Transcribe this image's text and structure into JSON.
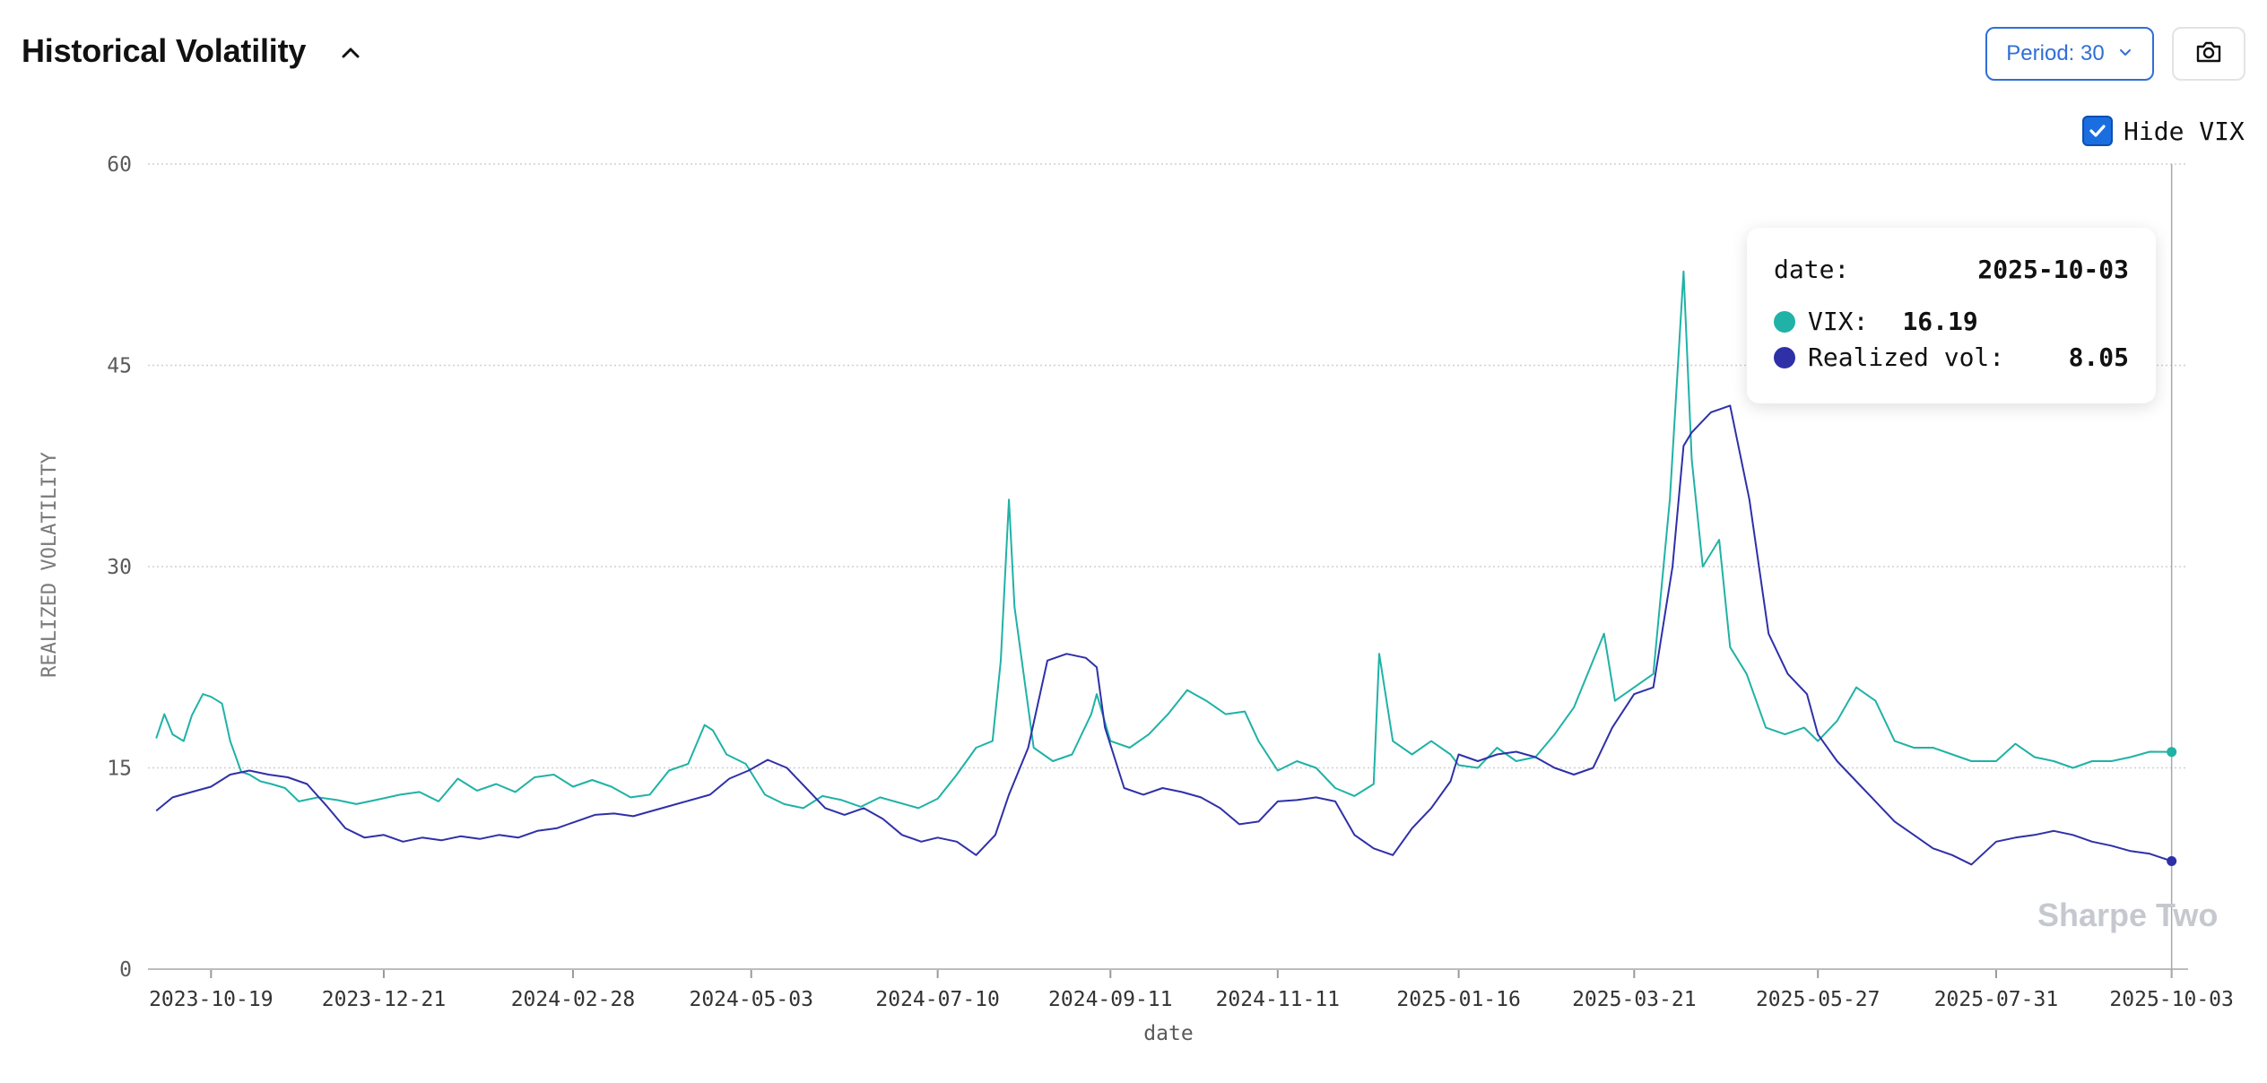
{
  "header": {
    "title": "Historical Volatility",
    "period_label": "Period: 30",
    "hide_vix_label": "Hide VIX",
    "hide_vix_checked": true
  },
  "icons": {
    "collapse": "chevron-up-icon",
    "period_dropdown": "chevron-down-icon",
    "camera": "camera-icon"
  },
  "tooltip": {
    "date_label": "date:",
    "date_value": "2025-10-03",
    "vix_label": "VIX:",
    "vix_value": "16.19",
    "rv_label": "Realized vol:",
    "rv_value": "8.05"
  },
  "watermark": "Sharpe Two",
  "chart_data": {
    "type": "line",
    "xlabel": "date",
    "ylabel": "REALIZED VOLATILITY",
    "ylim": [
      0,
      60
    ],
    "yticks": [
      0,
      15,
      30,
      45,
      60
    ],
    "xlim": [
      "2023-09-26",
      "2025-10-09"
    ],
    "xticks": [
      "2023-10-19",
      "2023-12-21",
      "2024-02-28",
      "2024-05-03",
      "2024-07-10",
      "2024-09-11",
      "2024-11-11",
      "2025-01-16",
      "2025-03-21",
      "2025-05-27",
      "2025-07-31",
      "2025-10-03"
    ],
    "grid": true,
    "crosshair_x": "2025-10-03",
    "colors": {
      "vix": "#20b2a6",
      "realized": "#2f30a8",
      "grid": "#cfcfcf",
      "axis_text": "#5a5a5a"
    },
    "series": [
      {
        "name": "VIX",
        "color": "#20b2a6",
        "x": [
          "2023-09-29",
          "2023-10-02",
          "2023-10-05",
          "2023-10-09",
          "2023-10-12",
          "2023-10-16",
          "2023-10-19",
          "2023-10-23",
          "2023-10-26",
          "2023-10-30",
          "2023-11-02",
          "2023-11-06",
          "2023-11-10",
          "2023-11-15",
          "2023-11-20",
          "2023-11-27",
          "2023-12-04",
          "2023-12-11",
          "2023-12-18",
          "2023-12-27",
          "2024-01-03",
          "2024-01-10",
          "2024-01-17",
          "2024-01-24",
          "2024-01-31",
          "2024-02-07",
          "2024-02-14",
          "2024-02-21",
          "2024-02-28",
          "2024-03-06",
          "2024-03-13",
          "2024-03-20",
          "2024-03-27",
          "2024-04-03",
          "2024-04-10",
          "2024-04-16",
          "2024-04-19",
          "2024-04-24",
          "2024-05-01",
          "2024-05-08",
          "2024-05-15",
          "2024-05-22",
          "2024-05-29",
          "2024-06-05",
          "2024-06-12",
          "2024-06-19",
          "2024-06-26",
          "2024-07-03",
          "2024-07-10",
          "2024-07-17",
          "2024-07-24",
          "2024-07-30",
          "2024-08-02",
          "2024-08-05",
          "2024-08-07",
          "2024-08-09",
          "2024-08-14",
          "2024-08-21",
          "2024-08-28",
          "2024-09-04",
          "2024-09-06",
          "2024-09-11",
          "2024-09-18",
          "2024-09-25",
          "2024-10-02",
          "2024-10-09",
          "2024-10-16",
          "2024-10-23",
          "2024-10-30",
          "2024-11-04",
          "2024-11-11",
          "2024-11-18",
          "2024-11-25",
          "2024-12-02",
          "2024-12-09",
          "2024-12-16",
          "2024-12-18",
          "2024-12-23",
          "2024-12-30",
          "2025-01-06",
          "2025-01-13",
          "2025-01-16",
          "2025-01-23",
          "2025-01-30",
          "2025-02-06",
          "2025-02-13",
          "2025-02-20",
          "2025-02-27",
          "2025-03-06",
          "2025-03-10",
          "2025-03-14",
          "2025-03-21",
          "2025-03-28",
          "2025-04-03",
          "2025-04-08",
          "2025-04-11",
          "2025-04-15",
          "2025-04-21",
          "2025-04-25",
          "2025-05-01",
          "2025-05-08",
          "2025-05-15",
          "2025-05-22",
          "2025-05-27",
          "2025-06-03",
          "2025-06-10",
          "2025-06-17",
          "2025-06-24",
          "2025-07-01",
          "2025-07-08",
          "2025-07-15",
          "2025-07-22",
          "2025-07-31",
          "2025-08-07",
          "2025-08-14",
          "2025-08-21",
          "2025-08-28",
          "2025-09-04",
          "2025-09-11",
          "2025-09-18",
          "2025-09-25",
          "2025-10-03"
        ],
        "y": [
          17.2,
          19.0,
          17.5,
          17.0,
          18.9,
          20.5,
          20.3,
          19.8,
          17.0,
          14.7,
          14.5,
          14.0,
          13.8,
          13.5,
          12.5,
          12.8,
          12.6,
          12.3,
          12.6,
          13.0,
          13.2,
          12.5,
          14.2,
          13.3,
          13.8,
          13.2,
          14.3,
          14.5,
          13.6,
          14.1,
          13.6,
          12.8,
          13.0,
          14.8,
          15.3,
          18.2,
          17.8,
          16.0,
          15.3,
          13.0,
          12.3,
          12.0,
          12.9,
          12.6,
          12.1,
          12.8,
          12.4,
          12.0,
          12.7,
          14.5,
          16.5,
          17.0,
          23.0,
          35.0,
          27.0,
          24.0,
          16.5,
          15.5,
          16.0,
          19.0,
          20.5,
          17.0,
          16.5,
          17.5,
          19.0,
          20.8,
          20.0,
          19.0,
          19.2,
          17.0,
          14.8,
          15.5,
          15.0,
          13.5,
          12.9,
          13.8,
          23.5,
          17.0,
          16.0,
          17.0,
          16.0,
          15.2,
          15.0,
          16.5,
          15.5,
          15.8,
          17.5,
          19.5,
          23.0,
          25.0,
          20.0,
          21.0,
          22.0,
          35.0,
          52.0,
          38.0,
          30.0,
          32.0,
          24.0,
          22.0,
          18.0,
          17.5,
          18.0,
          17.0,
          18.5,
          21.0,
          20.0,
          17.0,
          16.5,
          16.5,
          16.0,
          15.5,
          15.5,
          16.8,
          15.8,
          15.5,
          15.0,
          15.5,
          15.5,
          15.8,
          16.2,
          16.19
        ]
      },
      {
        "name": "Realized vol",
        "color": "#2f30a8",
        "x": [
          "2023-09-29",
          "2023-10-05",
          "2023-10-12",
          "2023-10-19",
          "2023-10-26",
          "2023-11-02",
          "2023-11-09",
          "2023-11-16",
          "2023-11-23",
          "2023-11-30",
          "2023-12-07",
          "2023-12-14",
          "2023-12-21",
          "2023-12-28",
          "2024-01-04",
          "2024-01-11",
          "2024-01-18",
          "2024-01-25",
          "2024-02-01",
          "2024-02-08",
          "2024-02-15",
          "2024-02-22",
          "2024-02-29",
          "2024-03-07",
          "2024-03-14",
          "2024-03-21",
          "2024-03-28",
          "2024-04-04",
          "2024-04-11",
          "2024-04-18",
          "2024-04-25",
          "2024-05-02",
          "2024-05-09",
          "2024-05-16",
          "2024-05-23",
          "2024-05-30",
          "2024-06-06",
          "2024-06-13",
          "2024-06-20",
          "2024-06-27",
          "2024-07-04",
          "2024-07-10",
          "2024-07-17",
          "2024-07-24",
          "2024-07-31",
          "2024-08-05",
          "2024-08-12",
          "2024-08-19",
          "2024-08-26",
          "2024-09-02",
          "2024-09-06",
          "2024-09-09",
          "2024-09-16",
          "2024-09-23",
          "2024-09-30",
          "2024-10-07",
          "2024-10-14",
          "2024-10-21",
          "2024-10-28",
          "2024-11-04",
          "2024-11-11",
          "2024-11-18",
          "2024-11-25",
          "2024-12-02",
          "2024-12-09",
          "2024-12-16",
          "2024-12-23",
          "2024-12-30",
          "2025-01-06",
          "2025-01-13",
          "2025-01-16",
          "2025-01-23",
          "2025-01-30",
          "2025-02-06",
          "2025-02-13",
          "2025-02-20",
          "2025-02-27",
          "2025-03-06",
          "2025-03-13",
          "2025-03-21",
          "2025-03-28",
          "2025-04-04",
          "2025-04-08",
          "2025-04-11",
          "2025-04-18",
          "2025-04-25",
          "2025-05-02",
          "2025-05-09",
          "2025-05-16",
          "2025-05-23",
          "2025-05-27",
          "2025-06-03",
          "2025-06-10",
          "2025-06-17",
          "2025-06-24",
          "2025-07-01",
          "2025-07-08",
          "2025-07-15",
          "2025-07-22",
          "2025-07-31",
          "2025-08-07",
          "2025-08-14",
          "2025-08-21",
          "2025-08-28",
          "2025-09-04",
          "2025-09-11",
          "2025-09-18",
          "2025-09-25",
          "2025-10-03"
        ],
        "y": [
          11.8,
          12.8,
          13.2,
          13.6,
          14.5,
          14.8,
          14.5,
          14.3,
          13.8,
          12.2,
          10.5,
          9.8,
          10.0,
          9.5,
          9.8,
          9.6,
          9.9,
          9.7,
          10.0,
          9.8,
          10.3,
          10.5,
          11.0,
          11.5,
          11.6,
          11.4,
          11.8,
          12.2,
          12.6,
          13.0,
          14.2,
          14.8,
          15.6,
          15.0,
          13.5,
          12.0,
          11.5,
          12.0,
          11.2,
          10.0,
          9.5,
          9.8,
          9.5,
          8.5,
          10.0,
          13.0,
          16.5,
          23.0,
          23.5,
          23.2,
          22.5,
          18.0,
          13.5,
          13.0,
          13.5,
          13.2,
          12.8,
          12.0,
          10.8,
          11.0,
          12.5,
          12.6,
          12.8,
          12.5,
          10.0,
          9.0,
          8.5,
          10.5,
          12.0,
          14.0,
          16.0,
          15.5,
          16.0,
          16.2,
          15.8,
          15.0,
          14.5,
          15.0,
          18.0,
          20.5,
          21.0,
          30.0,
          39.0,
          40.0,
          41.5,
          42.0,
          35.0,
          25.0,
          22.0,
          20.5,
          17.5,
          15.5,
          14.0,
          12.5,
          11.0,
          10.0,
          9.0,
          8.5,
          7.8,
          9.5,
          9.8,
          10.0,
          10.3,
          10.0,
          9.5,
          9.2,
          8.8,
          8.6,
          8.05
        ]
      }
    ]
  }
}
